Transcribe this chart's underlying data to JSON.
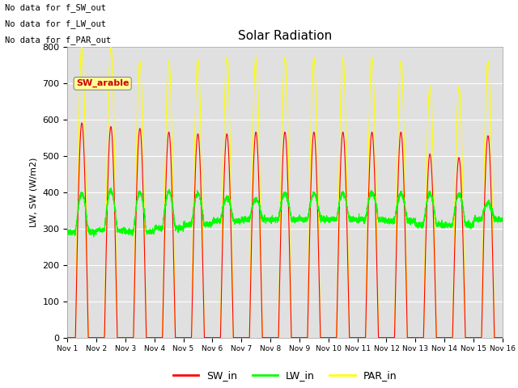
{
  "title": "Solar Radiation",
  "ylabel": "LW, SW (W/m2)",
  "ylim": [
    0,
    800
  ],
  "yticks": [
    0,
    100,
    200,
    300,
    400,
    500,
    600,
    700,
    800
  ],
  "xlim": [
    0,
    15
  ],
  "xtick_labels": [
    "Nov 1",
    "Nov 2",
    "Nov 3",
    "Nov 4",
    "Nov 5",
    "Nov 6",
    "Nov 7",
    "Nov 8",
    "Nov 9",
    "Nov 10",
    "Nov 11",
    "Nov 12",
    "Nov 13",
    "Nov 14",
    "Nov 15",
    "Nov 16"
  ],
  "bg_color": "#e0e0e0",
  "fig_color": "#ffffff",
  "grid_color": "#ffffff",
  "SW_in_color": "#ff0000",
  "LW_in_color": "#00ff00",
  "PAR_in_color": "#ffff00",
  "no_data_text": [
    "No data for f_SW_out",
    "No data for f_LW_out",
    "No data for f_PAR_out"
  ],
  "annotation_text": "SW_arable",
  "annotation_color": "#cc0000",
  "annotation_bg": "#ffff99",
  "n_days": 15,
  "SW_peaks": [
    590,
    580,
    575,
    565,
    560,
    560,
    565,
    565,
    565,
    565,
    565,
    565,
    505,
    495,
    555
  ],
  "PAR_peaks": [
    800,
    800,
    760,
    760,
    765,
    770,
    770,
    770,
    770,
    770,
    770,
    760,
    690,
    690,
    760
  ],
  "lw_night_vals": [
    290,
    295,
    290,
    300,
    310,
    320,
    325,
    325,
    325,
    325,
    325,
    320,
    310,
    310,
    325
  ],
  "lw_day_peaks": [
    395,
    405,
    400,
    400,
    395,
    385,
    380,
    395,
    395,
    395,
    400,
    395,
    395,
    395,
    370
  ]
}
